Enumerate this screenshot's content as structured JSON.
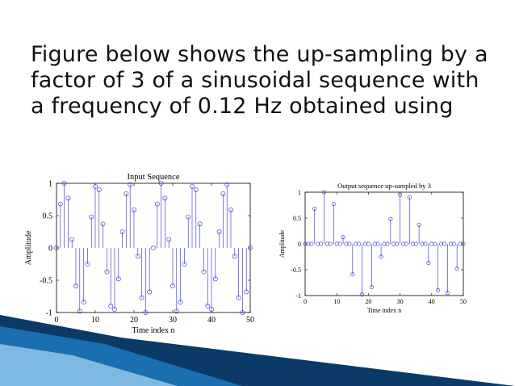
{
  "slide": {
    "title": "Figure below shows the up-sampling by a factor of 3 of a sinusoidal sequence with a frequency of 0.12 Hz obtained using"
  },
  "colors": {
    "stem": "#2a2acc",
    "axis": "#000000",
    "title_text": "#111111",
    "footer_dark": "#0b3a66",
    "footer_mid": "#1a6fb0",
    "footer_light": "#7fb8e0"
  },
  "chart_data": [
    {
      "type": "stem",
      "title": "Input Sequence",
      "xlabel": "Time index n",
      "ylabel": "Amplitude",
      "xlim": [
        0,
        50
      ],
      "ylim": [
        -1,
        1
      ],
      "xticks": [
        "0",
        "10",
        "20",
        "30",
        "40",
        "50"
      ],
      "yticks": [
        "1",
        "0.5",
        "0",
        "-0.5",
        "-1"
      ],
      "ytick_values": [
        1,
        0.5,
        0,
        -0.5,
        -1
      ],
      "xtick_values": [
        0,
        10,
        20,
        30,
        40,
        50
      ],
      "x": [
        0,
        1,
        2,
        3,
        4,
        5,
        6,
        7,
        8,
        9,
        10,
        11,
        12,
        13,
        14,
        15,
        16,
        17,
        18,
        19,
        20,
        21,
        22,
        23,
        24,
        25,
        26,
        27,
        28,
        29,
        30,
        31,
        32,
        33,
        34,
        35,
        36,
        37,
        38,
        39,
        40,
        41,
        42,
        43,
        44,
        45,
        46,
        47,
        48,
        49,
        50
      ],
      "values": [
        0,
        0.68,
        1.0,
        0.77,
        0.13,
        -0.59,
        -0.98,
        -0.84,
        -0.25,
        0.48,
        0.95,
        0.9,
        0.37,
        -0.37,
        -0.9,
        -0.95,
        -0.48,
        0.25,
        0.84,
        0.98,
        0.59,
        -0.13,
        -0.77,
        -1.0,
        -0.68,
        0,
        0.68,
        1.0,
        0.77,
        0.13,
        -0.59,
        -0.98,
        -0.84,
        -0.25,
        0.48,
        0.95,
        0.9,
        0.37,
        -0.37,
        -0.9,
        -0.95,
        -0.48,
        0.25,
        0.84,
        0.98,
        0.59,
        -0.13,
        -0.77,
        -1.0,
        -0.68,
        0
      ]
    },
    {
      "type": "stem",
      "title": "Output sequence up-sampled by 3",
      "xlabel": "Time index n",
      "ylabel": "Amplitude",
      "xlim": [
        0,
        50
      ],
      "ylim": [
        -1,
        1
      ],
      "xticks": [
        "0",
        "10",
        "20",
        "30",
        "40",
        "50"
      ],
      "yticks": [
        "1",
        "0.5",
        "0",
        "-0.5",
        "-1"
      ],
      "ytick_values": [
        1,
        0.5,
        0,
        -0.5,
        -1
      ],
      "xtick_values": [
        0,
        10,
        20,
        30,
        40,
        50
      ],
      "x": [
        0,
        1,
        2,
        3,
        4,
        5,
        6,
        7,
        8,
        9,
        10,
        11,
        12,
        13,
        14,
        15,
        16,
        17,
        18,
        19,
        20,
        21,
        22,
        23,
        24,
        25,
        26,
        27,
        28,
        29,
        30,
        31,
        32,
        33,
        34,
        35,
        36,
        37,
        38,
        39,
        40,
        41,
        42,
        43,
        44,
        45,
        46,
        47,
        48,
        49,
        50
      ],
      "values": [
        0,
        0,
        0,
        0.68,
        0,
        0,
        1.0,
        0,
        0,
        0.77,
        0,
        0,
        0.13,
        0,
        0,
        -0.59,
        0,
        0,
        -0.98,
        0,
        0,
        -0.84,
        0,
        0,
        -0.25,
        0,
        0,
        0.48,
        0,
        0,
        0.95,
        0,
        0,
        0.9,
        0,
        0,
        0.37,
        0,
        0,
        -0.37,
        0,
        0,
        -0.9,
        0,
        0,
        -0.95,
        0,
        0,
        -0.48,
        0,
        0
      ]
    }
  ]
}
